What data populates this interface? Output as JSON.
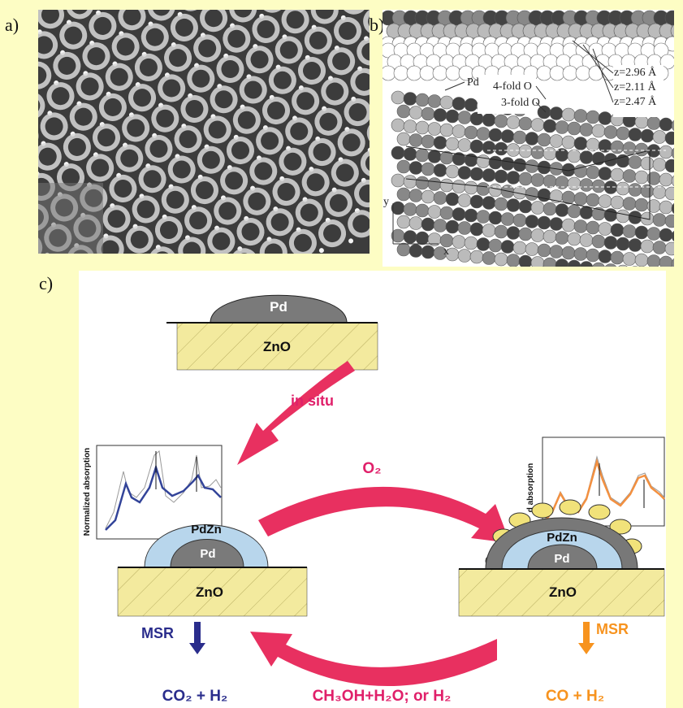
{
  "panel_labels": {
    "a": "a)",
    "b": "b)",
    "c": "c)"
  },
  "panel_b": {
    "labels": [
      "Pd",
      "4-fold O",
      "3-fold O"
    ],
    "heights": [
      "z=2.96 Å",
      "z=2.11 Å",
      "z=2.47 Å"
    ],
    "axes": {
      "y": "y",
      "x": "x"
    }
  },
  "panel_c": {
    "top": {
      "particle": "Pd",
      "support": "ZnO"
    },
    "step_in_situ": "in situ",
    "step_o2": "O₂",
    "feed": "CH₃OH+H₂O; or H₂",
    "left": {
      "ylabel": "Normalized absorption",
      "shell": "PdZn",
      "core": "Pd",
      "support": "ZnO",
      "process": "MSR",
      "products": "CO₂ + H₂"
    },
    "right": {
      "ylabel": "d absorption",
      "shell": "PdZn",
      "core": "Pd",
      "support": "ZnO",
      "process": "MSR",
      "products": "CO + H₂"
    }
  }
}
